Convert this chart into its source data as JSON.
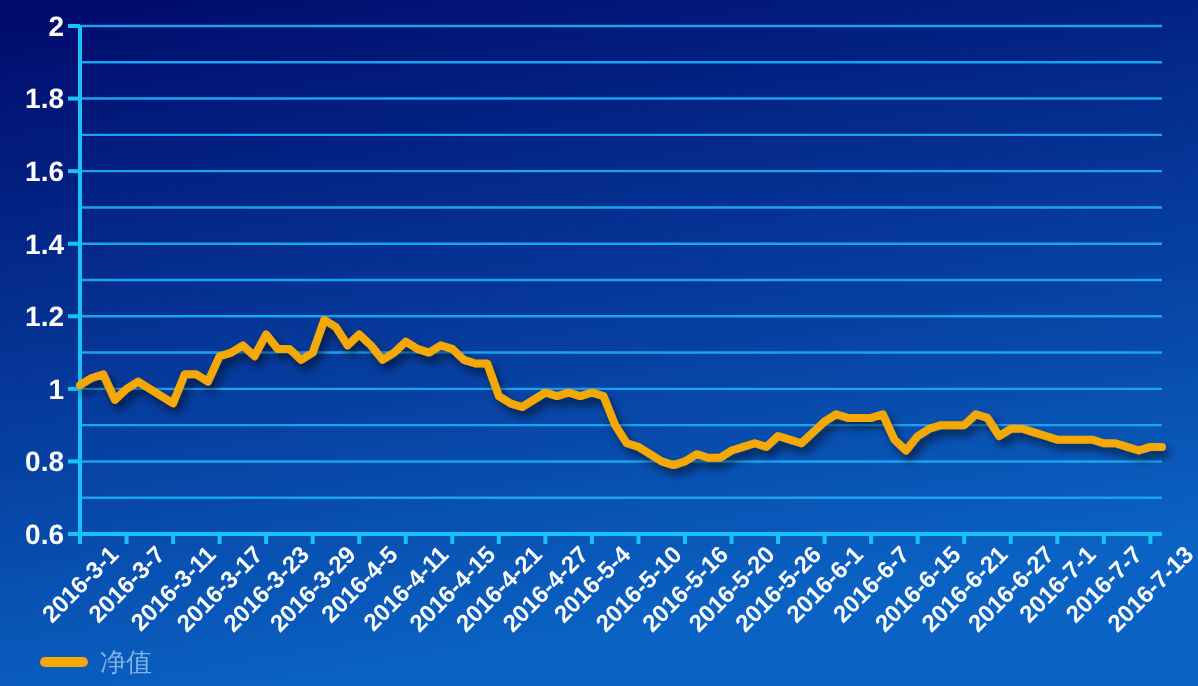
{
  "chart_data": {
    "type": "line",
    "categories": [
      "2016-3-1",
      null,
      null,
      null,
      "2016-3-7",
      null,
      null,
      null,
      "2016-3-11",
      null,
      null,
      null,
      "2016-3-17",
      null,
      null,
      null,
      "2016-3-23",
      null,
      null,
      null,
      "2016-3-29",
      null,
      null,
      null,
      "2016-4-5",
      null,
      null,
      null,
      "2016-4-11",
      null,
      null,
      null,
      "2016-4-15",
      null,
      null,
      null,
      "2016-4-21",
      null,
      null,
      null,
      "2016-4-27",
      null,
      null,
      null,
      "2016-5-4",
      null,
      null,
      null,
      "2016-5-10",
      null,
      null,
      null,
      "2016-5-16",
      null,
      null,
      null,
      "2016-5-20",
      null,
      null,
      null,
      "2016-5-26",
      null,
      null,
      null,
      "2016-6-1",
      null,
      null,
      null,
      "2016-6-7",
      null,
      null,
      null,
      "2016-6-15",
      null,
      null,
      null,
      "2016-6-21",
      null,
      null,
      null,
      "2016-6-27",
      null,
      null,
      null,
      "2016-7-1",
      null,
      null,
      null,
      "2016-7-7",
      null,
      null,
      null,
      "2016-7-13",
      null
    ],
    "series": [
      {
        "name": "净值",
        "color": "#f5a800",
        "values": [
          1.01,
          1.03,
          1.04,
          0.97,
          1.0,
          1.02,
          1.0,
          0.98,
          0.96,
          1.04,
          1.04,
          1.02,
          1.09,
          1.1,
          1.12,
          1.09,
          1.15,
          1.11,
          1.11,
          1.08,
          1.1,
          1.19,
          1.17,
          1.12,
          1.15,
          1.12,
          1.08,
          1.1,
          1.13,
          1.11,
          1.1,
          1.12,
          1.11,
          1.08,
          1.07,
          1.07,
          0.98,
          0.96,
          0.95,
          0.97,
          0.99,
          0.98,
          0.99,
          0.98,
          0.99,
          0.98,
          0.9,
          0.85,
          0.84,
          0.82,
          0.8,
          0.79,
          0.8,
          0.82,
          0.81,
          0.81,
          0.83,
          0.84,
          0.85,
          0.84,
          0.87,
          0.86,
          0.85,
          0.88,
          0.91,
          0.93,
          0.92,
          0.92,
          0.92,
          0.93,
          0.86,
          0.83,
          0.87,
          0.89,
          0.9,
          0.9,
          0.9,
          0.93,
          0.92,
          0.87,
          0.89,
          0.89,
          0.88,
          0.87,
          0.86,
          0.86,
          0.86,
          0.86,
          0.85,
          0.85,
          0.84,
          0.83,
          0.84,
          0.84
        ]
      }
    ],
    "ylim": [
      0.6,
      2
    ],
    "yticks": [
      0.6,
      {
        "value": 0.7,
        "label": null
      },
      0.8,
      {
        "value": 0.9,
        "label": null
      },
      1,
      {
        "value": 1.1,
        "label": null
      },
      1.2,
      {
        "value": 1.3,
        "label": null
      },
      1.4,
      {
        "value": 1.5,
        "label": null
      },
      1.6,
      {
        "value": 1.7,
        "label": null
      },
      1.8,
      {
        "value": 1.9,
        "label": null
      },
      2
    ],
    "grid": true,
    "legend": "bottom left",
    "marker": "none",
    "line_style": "solid"
  }
}
